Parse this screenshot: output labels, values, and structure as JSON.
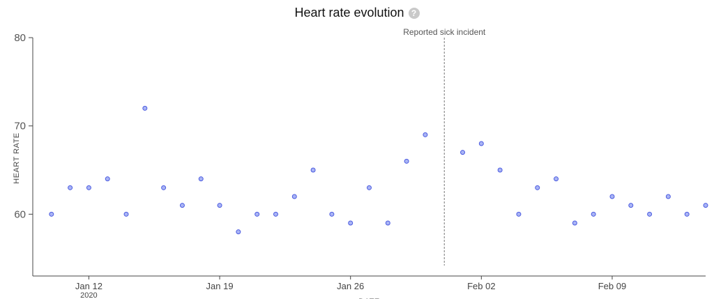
{
  "chart_data": {
    "type": "scatter",
    "title": "Heart rate evolution",
    "help_icon": "help-icon",
    "xlabel": "DATE",
    "ylabel": "HEART RATE",
    "x_ticks": [
      "Jan 12",
      "Jan 19",
      "Jan 26",
      "Feb 02",
      "Feb 09"
    ],
    "x_tick_dates": [
      "2020-01-12",
      "2020-01-19",
      "2020-01-26",
      "2020-02-02",
      "2020-02-09"
    ],
    "year_label": "2020",
    "xlim": [
      "2020-01-09",
      "2020-02-14"
    ],
    "y_ticks": [
      60,
      70,
      80
    ],
    "ylim": [
      53,
      80
    ],
    "grid": false,
    "annotation": {
      "label": "Reported sick incident",
      "date": "2020-01-31"
    },
    "point_color": "#a9b4f5",
    "point_stroke": "#4b5be0",
    "points": [
      {
        "x": "2020-01-10",
        "y": 60
      },
      {
        "x": "2020-01-11",
        "y": 63
      },
      {
        "x": "2020-01-12",
        "y": 63
      },
      {
        "x": "2020-01-13",
        "y": 64
      },
      {
        "x": "2020-01-14",
        "y": 60
      },
      {
        "x": "2020-01-15",
        "y": 72
      },
      {
        "x": "2020-01-16",
        "y": 63
      },
      {
        "x": "2020-01-17",
        "y": 61
      },
      {
        "x": "2020-01-18",
        "y": 64
      },
      {
        "x": "2020-01-19",
        "y": 61
      },
      {
        "x": "2020-01-20",
        "y": 58
      },
      {
        "x": "2020-01-21",
        "y": 60
      },
      {
        "x": "2020-01-22",
        "y": 60
      },
      {
        "x": "2020-01-23",
        "y": 62
      },
      {
        "x": "2020-01-24",
        "y": 65
      },
      {
        "x": "2020-01-25",
        "y": 60
      },
      {
        "x": "2020-01-26",
        "y": 59
      },
      {
        "x": "2020-01-27",
        "y": 63
      },
      {
        "x": "2020-01-28",
        "y": 59
      },
      {
        "x": "2020-01-29",
        "y": 66
      },
      {
        "x": "2020-01-30",
        "y": 69
      },
      {
        "x": "2020-02-01",
        "y": 67
      },
      {
        "x": "2020-02-02",
        "y": 68
      },
      {
        "x": "2020-02-03",
        "y": 65
      },
      {
        "x": "2020-02-04",
        "y": 60
      },
      {
        "x": "2020-02-05",
        "y": 63
      },
      {
        "x": "2020-02-06",
        "y": 64
      },
      {
        "x": "2020-02-07",
        "y": 59
      },
      {
        "x": "2020-02-08",
        "y": 60
      },
      {
        "x": "2020-02-09",
        "y": 62
      },
      {
        "x": "2020-02-10",
        "y": 61
      },
      {
        "x": "2020-02-11",
        "y": 60
      },
      {
        "x": "2020-02-12",
        "y": 62
      },
      {
        "x": "2020-02-13",
        "y": 60
      },
      {
        "x": "2020-02-14",
        "y": 61
      }
    ]
  }
}
